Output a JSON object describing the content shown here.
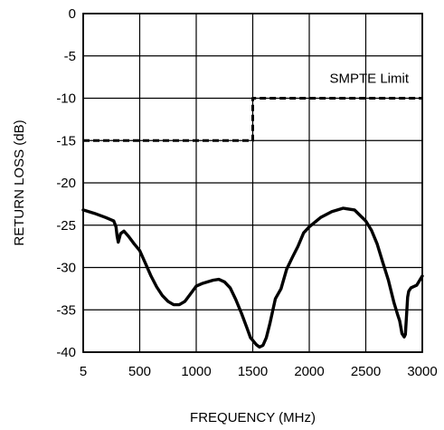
{
  "chart_data": {
    "type": "line",
    "xlabel": "FREQUENCY (MHz)",
    "ylabel": "RETURN LOSS (dB)",
    "xlim": [
      5,
      3000
    ],
    "ylim": [
      -40,
      0
    ],
    "x_ticks": [
      5,
      500,
      1000,
      1500,
      2000,
      2500,
      3000
    ],
    "y_ticks": [
      0,
      -5,
      -10,
      -15,
      -20,
      -25,
      -30,
      -35,
      -40
    ],
    "x_tick_labels": [
      "5",
      "500",
      "1000",
      "1500",
      "2000",
      "2500",
      "3000"
    ],
    "y_tick_labels": [
      "0",
      "-5",
      "-10",
      "-15",
      "-20",
      "-25",
      "-30",
      "-35",
      "-40"
    ],
    "grid": true,
    "annotations": [
      {
        "text": "SMPTE Limit",
        "x": 2180,
        "y": -8.2
      }
    ],
    "series": [
      {
        "name": "SMPTE Limit",
        "style": "dashed",
        "x": [
          5,
          1500,
          1500,
          3000
        ],
        "y": [
          -15,
          -15,
          -10,
          -10
        ]
      },
      {
        "style": "solid",
        "x": [
          5,
          100,
          200,
          270,
          290,
          300,
          310,
          330,
          360,
          400,
          450,
          500,
          550,
          600,
          650,
          700,
          750,
          800,
          850,
          900,
          950,
          1000,
          1050,
          1100,
          1150,
          1200,
          1250,
          1300,
          1350,
          1400,
          1450,
          1480,
          1500,
          1530,
          1560,
          1590,
          1620,
          1650,
          1700,
          1750,
          1800,
          1850,
          1900,
          1950,
          2000,
          2100,
          2200,
          2300,
          2400,
          2500,
          2550,
          2600,
          2650,
          2700,
          2750,
          2780,
          2800,
          2820,
          2840,
          2850,
          2870,
          2880,
          2900,
          2950,
          3000
        ],
        "y": [
          -23.2,
          -23.6,
          -24.1,
          -24.5,
          -25.2,
          -26.3,
          -27,
          -26,
          -25.7,
          -26.3,
          -27.2,
          -28,
          -29.5,
          -31,
          -32.3,
          -33.3,
          -34,
          -34.4,
          -34.4,
          -34,
          -33.1,
          -32.2,
          -31.9,
          -31.7,
          -31.5,
          -31.4,
          -31.7,
          -32.4,
          -33.8,
          -35.4,
          -37.2,
          -38.3,
          -38.6,
          -39.1,
          -39.4,
          -39.2,
          -38.3,
          -36.7,
          -33.7,
          -32.5,
          -30.2,
          -28.8,
          -27.5,
          -25.9,
          -25.2,
          -24.1,
          -23.4,
          -23,
          -23.2,
          -24.5,
          -25.6,
          -27.2,
          -29.4,
          -31.5,
          -34.2,
          -35.5,
          -36.3,
          -37.8,
          -38.2,
          -37.9,
          -33.5,
          -32.8,
          -32.4,
          -32.1,
          -31
        ]
      }
    ]
  }
}
